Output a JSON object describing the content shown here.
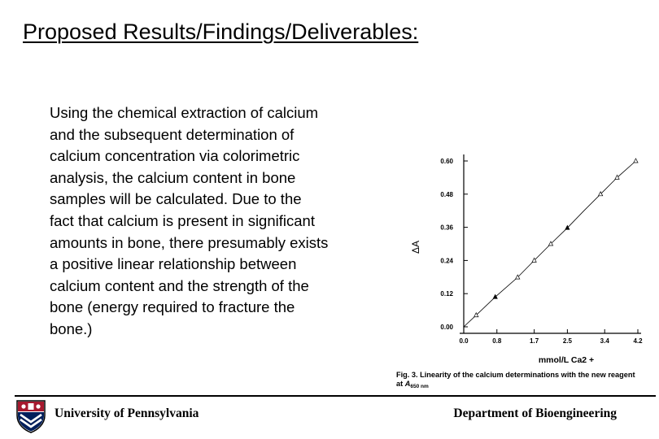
{
  "title": "Proposed Results/Findings/Deliverables:",
  "body_lines": [
    "Using the chemical extraction of calcium",
    "and the subsequent determination of",
    "calcium concentration via colorimetric",
    "analysis, the calcium content in bone",
    "samples will be calculated.  Due to the",
    "fact that calcium is present in significant",
    "amounts in bone, there presumably exists",
    "a positive linear relationship between",
    "calcium content and the strength of the",
    "bone (energy required to fracture the",
    "bone.)"
  ],
  "figure": {
    "caption_line1": "Fig. 3. Linearity of the calcium determinations with the new reagent",
    "caption_line2_prefix": "at ",
    "caption_A": "A",
    "caption_sub": "650 nm"
  },
  "footer": {
    "left": "University of Pennsylvania",
    "right": "Department of Bioengineering"
  },
  "icons": {
    "logo": "penn-shield-icon"
  },
  "colors": {
    "text": "#000000",
    "shield_red": "#a6192e",
    "shield_blue": "#011f5b"
  },
  "chart_data": {
    "type": "line",
    "xlabel": "mmol/L   Ca2 +",
    "ylabel": "ΔA",
    "x_ticks": [
      "0.0",
      "0.8",
      "1.7",
      "2.5",
      "3.4",
      "4.2"
    ],
    "y_ticks": [
      "0.00",
      "0.12",
      "0.24",
      "0.36",
      "0.48",
      "0.60"
    ],
    "xlim": [
      0.0,
      4.2
    ],
    "ylim": [
      0.0,
      0.6
    ],
    "grid": false,
    "series": [
      {
        "x": [
          0.0,
          0.3,
          0.76,
          1.3,
          1.7,
          2.1,
          2.5,
          2.9,
          3.3,
          3.7,
          4.15
        ],
        "y": [
          0.0,
          0.042,
          0.108,
          0.179,
          0.24,
          0.3,
          0.358,
          0.42,
          0.48,
          0.54,
          0.6
        ]
      }
    ],
    "markers": [
      {
        "x": 0.3,
        "y": 0.042,
        "shape": "triangle"
      },
      {
        "x": 0.76,
        "y": 0.108,
        "shape": "filled"
      },
      {
        "x": 1.3,
        "y": 0.179,
        "shape": "triangle"
      },
      {
        "x": 1.7,
        "y": 0.24,
        "shape": "triangle"
      },
      {
        "x": 2.1,
        "y": 0.3,
        "shape": "triangle"
      },
      {
        "x": 2.5,
        "y": 0.358,
        "shape": "filled"
      },
      {
        "x": 3.3,
        "y": 0.48,
        "shape": "triangle"
      },
      {
        "x": 3.7,
        "y": 0.54,
        "shape": "triangle"
      },
      {
        "x": 4.15,
        "y": 0.6,
        "shape": "triangle"
      }
    ]
  }
}
